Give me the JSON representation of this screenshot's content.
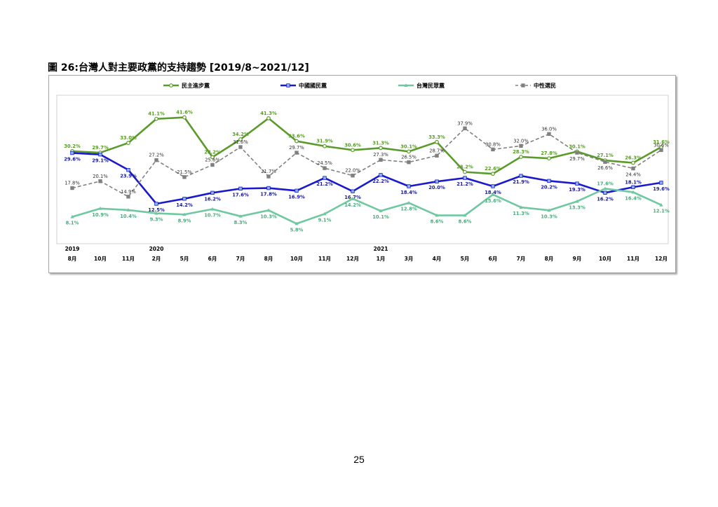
{
  "figure_title": "圖 26:台灣人對主要政黨的支持趨勢 [2019/8~2021/12]",
  "page_number": "25",
  "chart_data": {
    "type": "line",
    "title": "",
    "xlabel": "",
    "ylabel": "",
    "ylim": [
      0,
      50
    ],
    "grid": false,
    "legend_position": "top",
    "categories": [
      "8月",
      "10月",
      "11月",
      "2月",
      "5月",
      "6月",
      "7月",
      "8月",
      "10月",
      "11月",
      "12月",
      "1月",
      "3月",
      "4月",
      "5月",
      "6月",
      "7月",
      "8月",
      "9月",
      "10月",
      "11月",
      "12月"
    ],
    "year_labels": [
      {
        "index": 0,
        "label": "2019"
      },
      {
        "index": 3,
        "label": "2020"
      },
      {
        "index": 11,
        "label": "2021"
      }
    ],
    "series": [
      {
        "name": "民主進步黨",
        "color": "#5a9a2a",
        "label_color": "#5a9a2a",
        "marker": "circle",
        "dashed": false,
        "values": [
          30.2,
          29.7,
          33.0,
          41.1,
          41.6,
          28.2,
          34.2,
          41.3,
          33.6,
          31.9,
          30.6,
          31.3,
          30.1,
          33.3,
          23.2,
          22.6,
          28.3,
          27.8,
          30.1,
          27.1,
          26.3,
          31.6
        ],
        "labels": [
          "30.2%",
          "29.7%",
          "33.0%",
          "41.1%",
          "41.6%",
          "28.2%",
          "34.2%",
          "41.3%",
          "33.6%",
          "31.9%",
          "30.6%",
          "31.3%",
          "30.1%",
          "33.3%",
          "23.2%",
          "22.6%",
          "28.3%",
          "27.8%",
          "30.1%",
          "27.1%",
          "26.3%",
          "31.6%"
        ],
        "label_side": [
          "above",
          "above",
          "above",
          "above",
          "above",
          "above",
          "above",
          "above",
          "above",
          "above",
          "above",
          "above",
          "above",
          "above",
          "above",
          "above",
          "above",
          "above",
          "above",
          "above",
          "above",
          "above"
        ]
      },
      {
        "name": "中國國民黨",
        "color": "#1a1acc",
        "label_color": "#1a1a99",
        "marker": "square",
        "dashed": false,
        "values": [
          29.6,
          29.1,
          23.9,
          12.5,
          14.2,
          16.2,
          17.6,
          17.8,
          16.9,
          21.2,
          16.7,
          22.2,
          18.4,
          20.0,
          21.2,
          18.4,
          21.9,
          20.2,
          19.3,
          16.2,
          18.1,
          19.6
        ],
        "labels": [
          "29.6%",
          "29.1%",
          "23.9%",
          "12.5%",
          "14.2%",
          "16.2%",
          "17.6%",
          "17.8%",
          "16.9%",
          "21.2%",
          "16.7%",
          "22.2%",
          "18.4%",
          "20.0%",
          "21.2%",
          "18.4%",
          "21.9%",
          "20.2%",
          "19.3%",
          "16.2%",
          "18.1%",
          "19.6%"
        ],
        "label_side": [
          "below",
          "below",
          "below",
          "below",
          "below",
          "below",
          "below",
          "below",
          "below",
          "below",
          "below",
          "below",
          "below",
          "below",
          "below",
          "below",
          "below",
          "below",
          "below",
          "below",
          "above",
          "below"
        ]
      },
      {
        "name": "台灣民眾黨",
        "color": "#70c8a0",
        "label_color": "#4daa7e",
        "marker": "triangle",
        "dashed": false,
        "values": [
          8.1,
          10.9,
          10.4,
          9.3,
          8.9,
          10.7,
          8.3,
          10.3,
          5.8,
          9.1,
          14.2,
          10.1,
          12.8,
          8.6,
          8.6,
          15.6,
          11.3,
          10.3,
          13.3,
          17.6,
          16.4,
          12.1
        ],
        "labels": [
          "8.1%",
          "10.9%",
          "10.4%",
          "9.3%",
          "8.9%",
          "10.7%",
          "8.3%",
          "10.3%",
          "5.8%",
          "9.1%",
          "14.2%",
          "10.1%",
          "12.8%",
          "8.6%",
          "8.6%",
          "15.6%",
          "11.3%",
          "10.3%",
          "13.3%",
          "17.6%",
          "16.4%",
          "12.1%"
        ],
        "label_side": [
          "below",
          "below",
          "below",
          "below",
          "below",
          "below",
          "below",
          "below",
          "below",
          "below",
          "below",
          "below",
          "below",
          "below",
          "below",
          "below",
          "below",
          "below",
          "below",
          "above",
          "below",
          "below"
        ]
      },
      {
        "name": "中性選民",
        "color": "#808080",
        "label_color": "#333333",
        "marker": "square",
        "dashed": true,
        "values": [
          17.8,
          20.1,
          14.9,
          27.2,
          21.5,
          25.6,
          31.6,
          21.7,
          29.7,
          24.5,
          22.0,
          27.3,
          26.5,
          28.7,
          37.9,
          30.8,
          32.0,
          36.0,
          29.7,
          26.6,
          24.4,
          30.6
        ],
        "labels": [
          "17.8%",
          "20.1%",
          "14.9%",
          "27.2%",
          "21.5%",
          "25.6%",
          "31.6%",
          "21.7%",
          "29.7%",
          "24.5%",
          "22.0%",
          "27.3%",
          "26.5%",
          "28.7%",
          "37.9%",
          "30.8%",
          "32.0%",
          "36.0%",
          "29.7%",
          "26.6%",
          "24.4%",
          "30.6%"
        ],
        "label_side": [
          "above",
          "above",
          "above",
          "above",
          "above",
          "above",
          "above",
          "above",
          "above",
          "above",
          "above",
          "above",
          "above",
          "above",
          "above",
          "above",
          "above",
          "above",
          "below",
          "below",
          "below",
          "above"
        ]
      }
    ]
  }
}
